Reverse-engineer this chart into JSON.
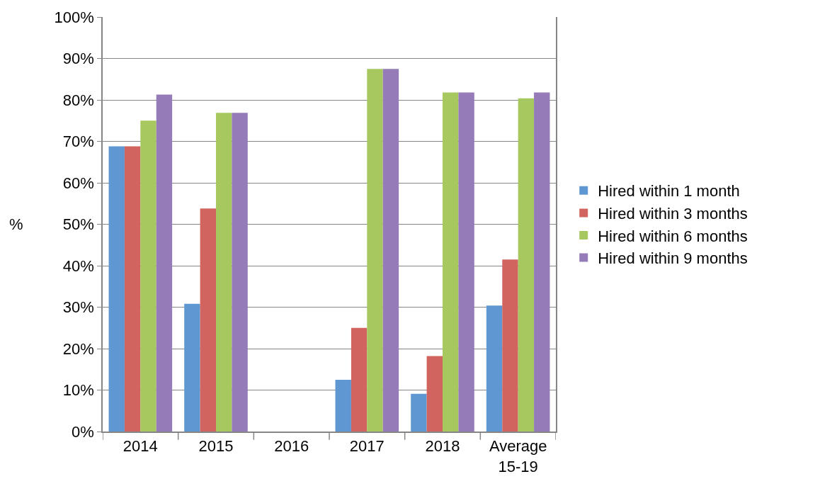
{
  "chart_data": {
    "type": "bar",
    "ylabel": "%",
    "categories": [
      "2014",
      "2015",
      "2016",
      "2017",
      "2018",
      "Average 15-19"
    ],
    "series": [
      {
        "name": "Hired within 1 month",
        "color": "#5f97d2",
        "values": [
          68.8,
          30.8,
          0,
          12.5,
          9.1,
          30.4
        ]
      },
      {
        "name": "Hired within 3 months",
        "color": "#d2645f",
        "values": [
          68.8,
          53.8,
          0,
          25,
          18.2,
          41.5
        ]
      },
      {
        "name": "Hired within 6 months",
        "color": "#a6c85f",
        "values": [
          75,
          76.9,
          0,
          87.5,
          81.8,
          80.4
        ]
      },
      {
        "name": "Hired within 9 months",
        "color": "#957cb8",
        "values": [
          81.3,
          76.9,
          0,
          87.5,
          81.8,
          81.8
        ]
      }
    ],
    "ylim": [
      0,
      100
    ],
    "yticks": [
      {
        "value": 0,
        "label": "0%"
      },
      {
        "value": 10,
        "label": "10%"
      },
      {
        "value": 20,
        "label": "20%"
      },
      {
        "value": 30,
        "label": "30%"
      },
      {
        "value": 40,
        "label": "40%"
      },
      {
        "value": 50,
        "label": "50%"
      },
      {
        "value": 60,
        "label": "60%"
      },
      {
        "value": 70,
        "label": "70%"
      },
      {
        "value": 80,
        "label": "80%"
      },
      {
        "value": 90,
        "label": "90%"
      },
      {
        "value": 100,
        "label": "100%"
      }
    ],
    "grid": "y",
    "legend": "right"
  }
}
